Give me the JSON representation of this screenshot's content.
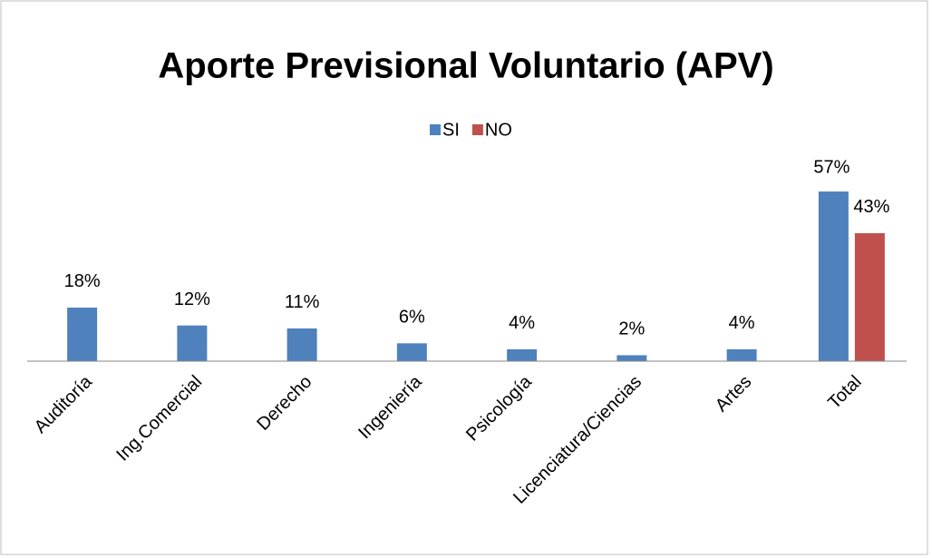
{
  "chart_data": {
    "type": "bar",
    "title": "Aporte Previsional Voluntario (APV)",
    "categories": [
      "Auditoría",
      "Ing.Comercial",
      "Derecho",
      "Ingeniería",
      "Psicología",
      "Licenciatura/Ciencias",
      "Artes",
      "Total"
    ],
    "series": [
      {
        "name": "SI",
        "color": "#4f81bd",
        "values": [
          18,
          12,
          11,
          6,
          4,
          2,
          4,
          57
        ],
        "value_labels": [
          "18%",
          "12%",
          "11%",
          "6%",
          "4%",
          "2%",
          "4%",
          "57%"
        ]
      },
      {
        "name": "NO",
        "color": "#c0504d",
        "values": [
          null,
          null,
          null,
          null,
          null,
          null,
          null,
          43
        ],
        "value_labels": [
          null,
          null,
          null,
          null,
          null,
          null,
          null,
          "43%"
        ]
      }
    ],
    "legend": "top"
  }
}
